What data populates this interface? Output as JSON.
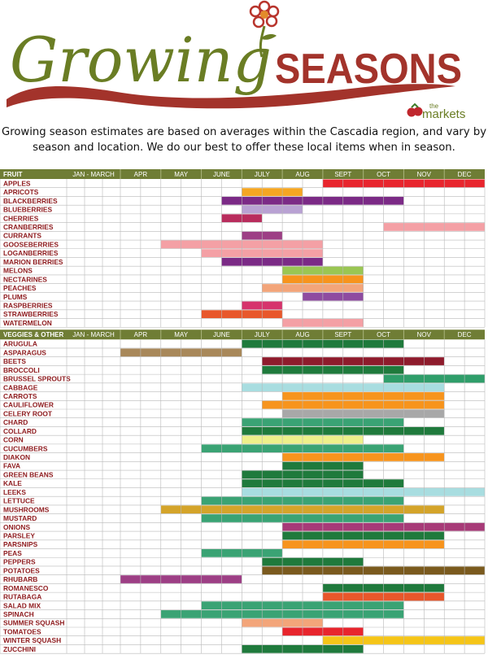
{
  "header": {
    "logo_script": "Growing",
    "logo_caps": "SEASONS",
    "brand_small": "the",
    "brand_name": "markets"
  },
  "intro": {
    "line1": "Growing season estimates are based on averages within the Cascadia region, and vary by",
    "line2": "season and location. We do our best to offer these local items when in season."
  },
  "colors": {
    "header_bg": "#6f7d35",
    "label_text": "#8f1d20",
    "grid_line": "#b9b9b9",
    "header_text": "#ffffff",
    "logo_green": "#6a7d24",
    "logo_red": "#a3332b"
  },
  "chart_data": {
    "type": "table",
    "months": [
      "JAN - MARCH",
      "APR",
      "MAY",
      "JUNE",
      "JULY",
      "AUG",
      "SEPT",
      "OCT",
      "NOV",
      "DEC"
    ],
    "sections": [
      {
        "title": "FRUIT",
        "rows": [
          {
            "name": "APPLES",
            "start": "SEPT",
            "end": "DEC",
            "color": "#e8252d"
          },
          {
            "name": "APRICOTS",
            "start": "JULY",
            "end": "mid AUG",
            "color": "#f5a623"
          },
          {
            "name": "BLACKBERRIES",
            "start": "mid JUNE",
            "end": "OCT",
            "color": "#7b2a86"
          },
          {
            "name": "BLUEBERRIES",
            "start": "JULY",
            "end": "mid AUG",
            "color": "#b9a2d3"
          },
          {
            "name": "CHERRIES",
            "start": "mid JUNE",
            "end": "mid JULY",
            "color": "#b92d5d"
          },
          {
            "name": "CRANBERRIES",
            "start": "mid OCT",
            "end": "DEC",
            "color": "#f4a0a5"
          },
          {
            "name": "CURRANTS",
            "start": "JULY",
            "end": "JULY",
            "color": "#9d3f85"
          },
          {
            "name": "GOOSEBERRIES",
            "start": "MAY",
            "end": "AUG",
            "color": "#f4a0a5"
          },
          {
            "name": "LOGANBERRIES",
            "start": "JUNE",
            "end": "AUG",
            "color": "#f4a0a5"
          },
          {
            "name": "MARION BERRIES",
            "start": "mid JUNE",
            "end": "AUG",
            "color": "#7b2a86"
          },
          {
            "name": "MELONS",
            "start": "AUG",
            "end": "SEPT",
            "color": "#9ac653"
          },
          {
            "name": "NECTARINES",
            "start": "AUG",
            "end": "SEPT",
            "color": "#f7941d"
          },
          {
            "name": "PEACHES",
            "start": "mid JULY",
            "end": "SEPT",
            "color": "#f3a57a"
          },
          {
            "name": "PLUMS",
            "start": "mid AUG",
            "end": "SEPT",
            "color": "#8e4ba0"
          },
          {
            "name": "RASPBERRIES",
            "start": "JULY",
            "end": "JULY",
            "color": "#d6336c"
          },
          {
            "name": "STRAWBERRIES",
            "start": "JUNE",
            "end": "JULY",
            "color": "#e8572b"
          },
          {
            "name": "WATERMELON",
            "start": "AUG",
            "end": "SEPT",
            "color": "#f4a0a5"
          }
        ]
      },
      {
        "title": "VEGGIES & OTHER",
        "rows": [
          {
            "name": "ARUGULA",
            "start": "JULY",
            "end": "OCT",
            "color": "#1f7a3c"
          },
          {
            "name": "ASPARAGUS",
            "start": "APR",
            "end": "JUNE",
            "color": "#a8885a"
          },
          {
            "name": "BEETS",
            "start": "mid JULY",
            "end": "NOV",
            "color": "#8e1b2c"
          },
          {
            "name": "BROCCOLI",
            "start": "mid JULY",
            "end": "OCT",
            "color": "#1f7a3c"
          },
          {
            "name": "BRUSSEL SPROUTS",
            "start": "mid OCT",
            "end": "DEC",
            "color": "#2f9e6a"
          },
          {
            "name": "CABBAGE",
            "start": "JULY",
            "end": "NOV",
            "color": "#a8dde0"
          },
          {
            "name": "CARROTS",
            "start": "AUG",
            "end": "NOV",
            "color": "#f7941d"
          },
          {
            "name": "CAULIFLOWER",
            "start": "mid JULY",
            "end": "NOV",
            "color": "#f7941d"
          },
          {
            "name": "CELERY ROOT",
            "start": "AUG",
            "end": "NOV",
            "color": "#a8a8a8"
          },
          {
            "name": "CHARD",
            "start": "JULY",
            "end": "OCT",
            "color": "#3aa374"
          },
          {
            "name": "COLLARD",
            "start": "JULY",
            "end": "NOV",
            "color": "#1f7a3c"
          },
          {
            "name": "CORN",
            "start": "JULY",
            "end": "SEPT",
            "color": "#eef08a"
          },
          {
            "name": "CUCUMBERS",
            "start": "JUNE",
            "end": "OCT",
            "color": "#3aa374"
          },
          {
            "name": "DIAKON",
            "start": "AUG",
            "end": "NOV",
            "color": "#f7941d"
          },
          {
            "name": "FAVA",
            "start": "AUG",
            "end": "SEPT",
            "color": "#1f7a3c"
          },
          {
            "name": "GREEN BEANS",
            "start": "JULY",
            "end": "SEPT",
            "color": "#1f7a3c"
          },
          {
            "name": "KALE",
            "start": "JULY",
            "end": "OCT",
            "color": "#1f7a3c"
          },
          {
            "name": "LEEKS",
            "start": "JULY",
            "end": "DEC",
            "color": "#a8dde0"
          },
          {
            "name": "LETTUCE",
            "start": "JUNE",
            "end": "OCT",
            "color": "#3aa374"
          },
          {
            "name": "MUSHROOMS",
            "start": "MAY",
            "end": "NOV",
            "color": "#d4a42a"
          },
          {
            "name": "MUSTARD",
            "start": "JUNE",
            "end": "OCT",
            "color": "#3aa374"
          },
          {
            "name": "ONIONS",
            "start": "AUG",
            "end": "DEC",
            "color": "#a73a78"
          },
          {
            "name": "PARSLEY",
            "start": "AUG",
            "end": "NOV",
            "color": "#1f7a3c"
          },
          {
            "name": "PARSNIPS",
            "start": "AUG",
            "end": "NOV",
            "color": "#f7941d"
          },
          {
            "name": "PEAS",
            "start": "JUNE",
            "end": "JULY",
            "color": "#3aa374"
          },
          {
            "name": "PEPPERS",
            "start": "mid JULY",
            "end": "SEPT",
            "color": "#1f7a3c"
          },
          {
            "name": "POTATOES",
            "start": "mid JULY",
            "end": "DEC",
            "color": "#7a5a1e"
          },
          {
            "name": "RHUBARB",
            "start": "APR",
            "end": "JUNE",
            "color": "#9d3f85"
          },
          {
            "name": "ROMANESCO",
            "start": "SEPT",
            "end": "NOV",
            "color": "#1f7a3c"
          },
          {
            "name": "RUTABAGA",
            "start": "SEPT",
            "end": "NOV",
            "color": "#e8572b"
          },
          {
            "name": "SALAD MIX",
            "start": "JUNE",
            "end": "OCT",
            "color": "#3aa374"
          },
          {
            "name": "SPINACH",
            "start": "MAY",
            "end": "OCT",
            "color": "#3aa374"
          },
          {
            "name": "SUMMER SQUASH",
            "start": "JULY",
            "end": "AUG",
            "color": "#f3a57a"
          },
          {
            "name": "TOMATOES",
            "start": "AUG",
            "end": "SEPT",
            "color": "#e8252d"
          },
          {
            "name": "WINTER SQUASH",
            "start": "SEPT",
            "end": "DEC",
            "color": "#f5c518"
          },
          {
            "name": "ZUCCHINI",
            "start": "JULY",
            "end": "SEPT",
            "color": "#1f7a3c"
          }
        ]
      }
    ]
  }
}
